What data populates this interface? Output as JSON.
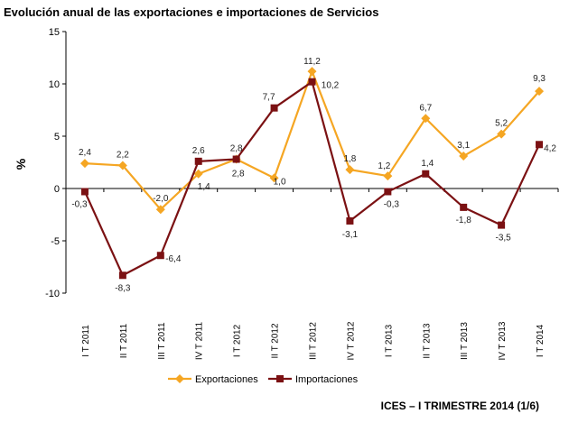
{
  "title": "Evolución anual de las exportaciones e importaciones de Servicios",
  "footer": "ICES – I TRIMESTRE 2014 (1/6)",
  "chart_data": {
    "type": "line",
    "title": "Evolución anual de las exportaciones e importaciones de Servicios",
    "xlabel": "",
    "ylabel": "%",
    "ylim": [
      -10,
      15
    ],
    "yticks": [
      -10,
      -5,
      0,
      5,
      10,
      15
    ],
    "grid": false,
    "legend": "bottom",
    "categories": [
      "I T 2011",
      "II T 2011",
      "III T 2011",
      "IV T 2011",
      "I T 2012",
      "II T 2012",
      "III T 2012",
      "IV T 2012",
      "I T 2013",
      "II T 2013",
      "III T 2013",
      "IV T 2013",
      "I T 2014"
    ],
    "series": [
      {
        "name": "Exportaciones",
        "color": "#F5A623",
        "marker": "diamond",
        "values": [
          2.4,
          2.2,
          -2.0,
          1.4,
          2.8,
          1.0,
          11.2,
          1.8,
          1.2,
          6.7,
          3.1,
          5.2,
          9.3
        ],
        "labels": [
          "2,4",
          "2,2",
          "-2,0",
          "1,4",
          "2,8",
          "1,0",
          "11,2",
          "1,8",
          "1,2",
          "6,7",
          "3,1",
          "5,2",
          "9,3"
        ]
      },
      {
        "name": "Importaciones",
        "color": "#7B1113",
        "marker": "square",
        "values": [
          -0.3,
          -8.3,
          -6.4,
          2.6,
          2.8,
          7.7,
          10.2,
          -3.1,
          -0.3,
          1.4,
          -1.8,
          -3.5,
          4.2
        ],
        "labels": [
          "-0,3",
          "-8,3",
          "-6,4",
          "2,6",
          "2,8",
          "7,7",
          "10,2",
          "-3,1",
          "-0,3",
          "1,4",
          "-1,8",
          "-3,5",
          "4,2"
        ]
      }
    ]
  }
}
